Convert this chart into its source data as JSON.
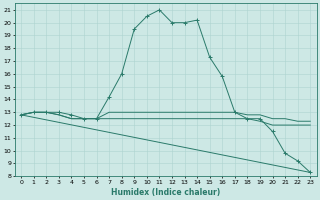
{
  "xlabel": "Humidex (Indice chaleur)",
  "bg_color": "#cde8e5",
  "grid_color": "#aed4d0",
  "line_color": "#2a7a6a",
  "xlim": [
    -0.5,
    23.5
  ],
  "ylim": [
    8,
    21.5
  ],
  "xticks": [
    0,
    1,
    2,
    3,
    4,
    5,
    6,
    7,
    8,
    9,
    10,
    11,
    12,
    13,
    14,
    15,
    16,
    17,
    18,
    19,
    20,
    21,
    22,
    23
  ],
  "yticks": [
    8,
    9,
    10,
    11,
    12,
    13,
    14,
    15,
    16,
    17,
    18,
    19,
    20,
    21
  ],
  "lines": [
    {
      "x": [
        0,
        1,
        2,
        3,
        4,
        5,
        6,
        7,
        8,
        9,
        10,
        11,
        12,
        13,
        14,
        15,
        16,
        17,
        18,
        19,
        20,
        21,
        22,
        23
      ],
      "y": [
        12.8,
        13.0,
        13.0,
        13.0,
        12.8,
        12.5,
        12.5,
        14.2,
        16.0,
        19.5,
        20.5,
        21.0,
        20.0,
        20.0,
        20.2,
        17.3,
        15.8,
        13.0,
        12.5,
        12.5,
        11.5,
        9.8,
        9.2,
        8.3
      ],
      "marker": true
    },
    {
      "x": [
        0,
        1,
        2,
        3,
        4,
        5,
        6,
        7,
        8,
        9,
        10,
        11,
        12,
        13,
        14,
        15,
        16,
        17,
        18,
        19,
        20,
        21,
        22,
        23
      ],
      "y": [
        12.8,
        13.0,
        13.0,
        12.8,
        12.5,
        12.5,
        12.5,
        13.0,
        13.0,
        13.0,
        13.0,
        13.0,
        13.0,
        13.0,
        13.0,
        13.0,
        13.0,
        13.0,
        12.8,
        12.8,
        12.5,
        12.5,
        12.3,
        12.3
      ],
      "marker": false
    },
    {
      "x": [
        0,
        1,
        2,
        3,
        4,
        5,
        6,
        7,
        8,
        9,
        10,
        11,
        12,
        13,
        14,
        15,
        16,
        17,
        18,
        19,
        20,
        21,
        22,
        23
      ],
      "y": [
        12.8,
        13.0,
        13.0,
        12.8,
        12.5,
        12.5,
        12.5,
        12.5,
        12.5,
        12.5,
        12.5,
        12.5,
        12.5,
        12.5,
        12.5,
        12.5,
        12.5,
        12.5,
        12.5,
        12.3,
        12.0,
        12.0,
        12.0,
        12.0
      ],
      "marker": false
    },
    {
      "x": [
        0,
        23
      ],
      "y": [
        12.8,
        8.3
      ],
      "marker": false
    }
  ]
}
